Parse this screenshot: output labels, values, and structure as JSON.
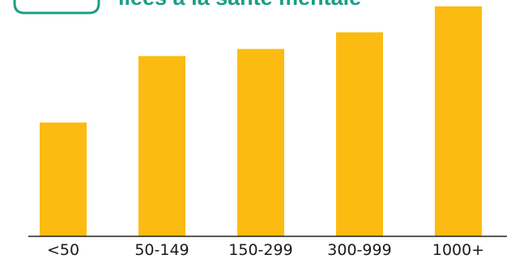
{
  "title_fragment": "liées à la santé mentale",
  "colors": {
    "bar": "#FBBB10",
    "title": "#1B9E86",
    "axis": "#222222",
    "label": "#1a1a1a"
  },
  "chart_data": {
    "type": "bar",
    "categories": [
      "<50",
      "50-149",
      "150-299",
      "300-999",
      "1000+"
    ],
    "values": [
      48,
      76,
      79,
      86,
      97
    ],
    "ylim": [
      0,
      100
    ],
    "xlabel": "",
    "ylabel": "",
    "grid": false,
    "legend": "none"
  }
}
